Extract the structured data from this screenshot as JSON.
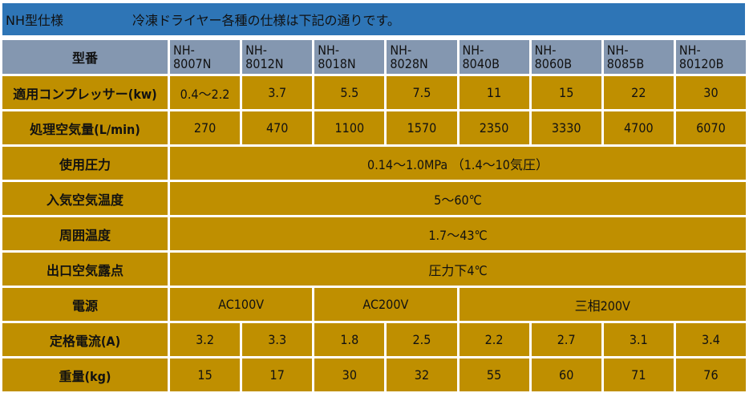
{
  "title": {
    "name": "NH型仕様",
    "description": "冷凍ドライヤー各種の仕様は下記の通りです。"
  },
  "colors": {
    "title_bg": "#2E75B6",
    "header_bg": "#8497B0",
    "cell_bg": "#BF8F00",
    "border": "#FFFFFF"
  },
  "table": {
    "header_label": "型番",
    "models": [
      {
        "line1": "NH-",
        "line2": "8007N"
      },
      {
        "line1": "NH-",
        "line2": "8012N"
      },
      {
        "line1": "NH-",
        "line2": "8018N"
      },
      {
        "line1": "NH-",
        "line2": "8028N"
      },
      {
        "line1": "NH-",
        "line2": "8040B"
      },
      {
        "line1": "NH-",
        "line2": "8060B"
      },
      {
        "line1": "NH-",
        "line2": "8085B"
      },
      {
        "line1": "NH-",
        "line2": "80120B"
      }
    ],
    "compressor": {
      "label": "適用コンプレッサー(kw)",
      "values": [
        "0.4～2.2",
        "3.7",
        "5.5",
        "7.5",
        "11",
        "15",
        "22",
        "30"
      ]
    },
    "air_flow": {
      "label": "処理空気量(L/min)",
      "values": [
        "270",
        "470",
        "1100",
        "1570",
        "2350",
        "3330",
        "4700",
        "6070"
      ]
    },
    "pressure": {
      "label": "使用圧力",
      "value": "0.14～1.0MPa （1.4～10気圧）"
    },
    "inlet_temp": {
      "label": "入気空気温度",
      "value": "5～60℃"
    },
    "ambient_temp": {
      "label": "周囲温度",
      "value": "1.7～43℃"
    },
    "dew_point": {
      "label": "出口空気露点",
      "value": "圧力下4℃"
    },
    "power": {
      "label": "電源",
      "groups": [
        {
          "value": "AC100V",
          "span": 2
        },
        {
          "value": "AC200V",
          "span": 2
        },
        {
          "value": "三相200V",
          "span": 4
        }
      ]
    },
    "current": {
      "label": "定格電流(A)",
      "values": [
        "3.2",
        "3.3",
        "1.8",
        "2.5",
        "2.2",
        "2.7",
        "3.1",
        "3.4"
      ]
    },
    "weight": {
      "label": "重量(kg)",
      "values": [
        "15",
        "17",
        "30",
        "32",
        "55",
        "60",
        "71",
        "76"
      ]
    }
  }
}
